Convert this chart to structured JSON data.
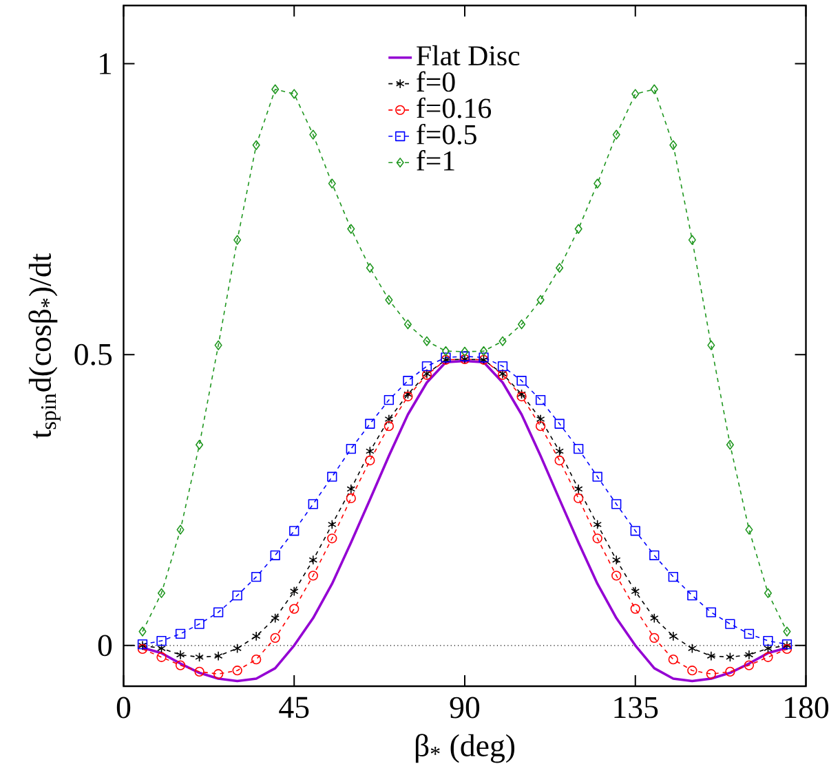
{
  "chart_data": {
    "type": "line",
    "xlabel": "β$_{*}$ (deg)",
    "ylabel": "t$_{spin}$d(cosβ$_{*}$)/dt",
    "x": [
      5,
      10,
      15,
      20,
      25,
      30,
      35,
      40,
      45,
      50,
      55,
      60,
      65,
      70,
      75,
      80,
      85,
      90,
      95,
      100,
      105,
      110,
      115,
      120,
      125,
      130,
      135,
      140,
      145,
      150,
      155,
      160,
      165,
      170,
      175
    ],
    "series": [
      {
        "name": "Flat Disc",
        "color": "#9400d3",
        "marker": "none",
        "line_style": "solid",
        "values": [
          -0.004,
          -0.013,
          -0.031,
          -0.047,
          -0.057,
          -0.061,
          -0.057,
          -0.039,
          0.0,
          0.047,
          0.106,
          0.177,
          0.251,
          0.326,
          0.397,
          0.452,
          0.487,
          0.489,
          0.487,
          0.452,
          0.397,
          0.326,
          0.251,
          0.177,
          0.106,
          0.047,
          0.0,
          -0.039,
          -0.057,
          -0.061,
          -0.057,
          -0.047,
          -0.031,
          -0.013,
          -0.004
        ]
      },
      {
        "name": "f=0",
        "color": "#000000",
        "marker": "cross",
        "line_style": "dashed",
        "values": [
          0.0,
          -0.005,
          -0.016,
          -0.02,
          -0.018,
          -0.005,
          0.016,
          0.047,
          0.093,
          0.147,
          0.208,
          0.269,
          0.334,
          0.389,
          0.432,
          0.467,
          0.491,
          0.492,
          0.491,
          0.467,
          0.432,
          0.389,
          0.334,
          0.269,
          0.208,
          0.147,
          0.093,
          0.047,
          0.016,
          -0.005,
          -0.018,
          -0.02,
          -0.016,
          -0.005,
          0.0
        ]
      },
      {
        "name": "f=0.16",
        "color": "#ff0000",
        "marker": "circle",
        "line_style": "dashed",
        "values": [
          -0.006,
          -0.02,
          -0.034,
          -0.045,
          -0.049,
          -0.043,
          -0.024,
          0.013,
          0.063,
          0.12,
          0.184,
          0.253,
          0.318,
          0.377,
          0.428,
          0.465,
          0.491,
          0.492,
          0.491,
          0.465,
          0.428,
          0.377,
          0.318,
          0.253,
          0.184,
          0.12,
          0.063,
          0.013,
          -0.024,
          -0.043,
          -0.049,
          -0.045,
          -0.034,
          -0.02,
          -0.006
        ]
      },
      {
        "name": "f=0.5",
        "color": "#0000ff",
        "marker": "square",
        "line_style": "dashed",
        "values": [
          0.002,
          0.008,
          0.02,
          0.037,
          0.057,
          0.086,
          0.118,
          0.155,
          0.197,
          0.243,
          0.29,
          0.338,
          0.381,
          0.422,
          0.455,
          0.48,
          0.495,
          0.497,
          0.495,
          0.48,
          0.455,
          0.422,
          0.381,
          0.338,
          0.29,
          0.243,
          0.197,
          0.155,
          0.118,
          0.086,
          0.057,
          0.037,
          0.02,
          0.008,
          0.002
        ]
      },
      {
        "name": "f=1",
        "color": "#1e961e",
        "marker": "diamond",
        "line_style": "dashed",
        "values": [
          0.024,
          0.09,
          0.199,
          0.345,
          0.516,
          0.697,
          0.86,
          0.956,
          0.948,
          0.878,
          0.794,
          0.716,
          0.649,
          0.594,
          0.552,
          0.523,
          0.506,
          0.505,
          0.506,
          0.523,
          0.552,
          0.594,
          0.649,
          0.716,
          0.794,
          0.878,
          0.948,
          0.956,
          0.86,
          0.697,
          0.516,
          0.345,
          0.199,
          0.09,
          0.024
        ]
      }
    ],
    "xlim": [
      0,
      180
    ],
    "xticks": [
      0,
      45,
      90,
      135,
      180
    ],
    "ylim": [
      -0.07,
      1.1
    ],
    "yticks": [
      0,
      0.5,
      1
    ],
    "ref_lines": [
      {
        "axis": "y",
        "value": 0,
        "color": "#000000",
        "line_style": "dotted"
      }
    ],
    "legend": "top",
    "grid": false
  }
}
